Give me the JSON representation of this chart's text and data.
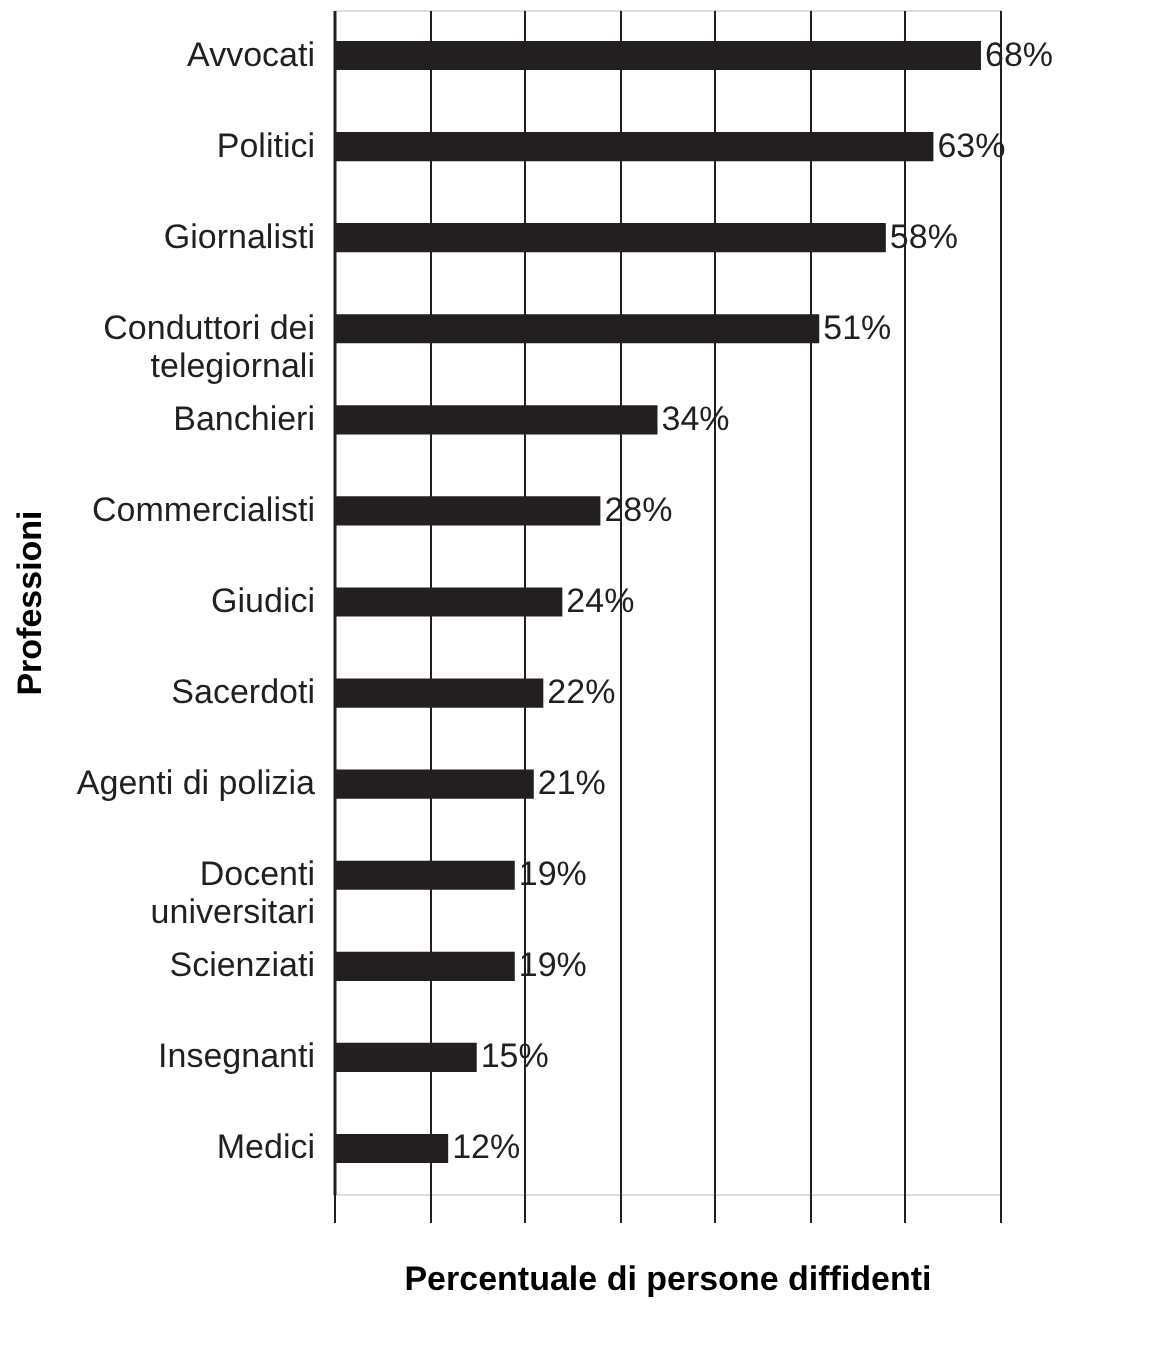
{
  "chart_data": {
    "type": "bar",
    "orientation": "horizontal",
    "xlabel": "Percentuale di persone diffidenti",
    "ylabel": "Professioni",
    "categories": [
      "Avvocati",
      "Politici",
      "Giornalisti",
      "Conduttori dei\ntelegiornali",
      "Banchieri",
      "Commercialisti",
      "Giudici",
      "Sacerdoti",
      "Agenti di polizia",
      "Docenti\nuniversitari",
      "Scienziati",
      "Insegnanti",
      "Medici"
    ],
    "values": [
      68,
      63,
      58,
      51,
      34,
      28,
      24,
      22,
      21,
      19,
      19,
      15,
      12
    ],
    "value_labels": [
      "68%",
      "63%",
      "58%",
      "51%",
      "34%",
      "28%",
      "24%",
      "22%",
      "21%",
      "19%",
      "19%",
      "15%",
      "12%"
    ],
    "color": "#231f20",
    "xlim": [
      0,
      70
    ],
    "xticks": [
      {
        "value": 0,
        "label": null
      },
      {
        "value": 10,
        "label": null
      },
      {
        "value": 20,
        "label": null
      },
      {
        "value": 30,
        "label": null
      },
      {
        "value": 40,
        "label": null
      },
      {
        "value": 50,
        "label": null
      },
      {
        "value": 60,
        "label": null
      },
      {
        "value": 70,
        "label": null
      }
    ],
    "grid": "x",
    "tick_labels": "y"
  }
}
